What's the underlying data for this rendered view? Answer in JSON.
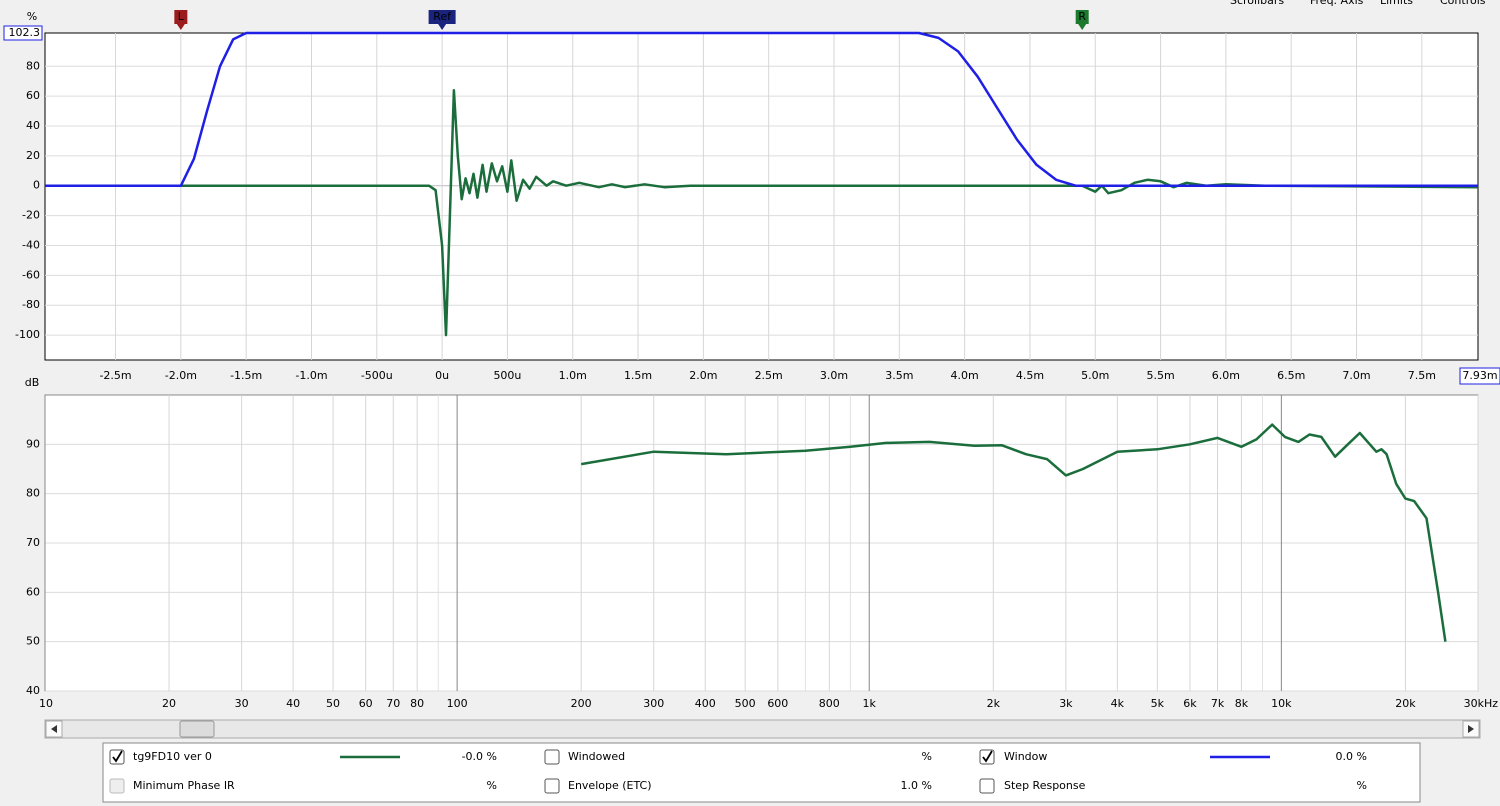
{
  "toolbar": [
    "Scrollbars",
    "Freq. Axis",
    "Limits",
    "Controls"
  ],
  "chart_data": [
    {
      "type": "line",
      "ylabel": "%",
      "xlim": [
        -3.04,
        7.93
      ],
      "ylim": [
        -116.7,
        102.3
      ],
      "yticks": [
        102.3,
        80,
        60,
        40,
        20,
        0,
        -20,
        -40,
        -60,
        -80,
        -100
      ],
      "xticks": [
        {
          "value": -2.5,
          "label": "-2.5m"
        },
        {
          "value": -2.0,
          "label": "-2.0m"
        },
        {
          "value": -1.5,
          "label": "-1.5m"
        },
        {
          "value": -1.0,
          "label": "-1.0m"
        },
        {
          "value": -0.5,
          "label": "-500u"
        },
        {
          "value": 0,
          "label": "0u"
        },
        {
          "value": 0.5,
          "label": "500u"
        },
        {
          "value": 1.0,
          "label": "1.0m"
        },
        {
          "value": 1.5,
          "label": "1.5m"
        },
        {
          "value": 2.0,
          "label": "2.0m"
        },
        {
          "value": 2.5,
          "label": "2.5m"
        },
        {
          "value": 3.0,
          "label": "3.0m"
        },
        {
          "value": 3.5,
          "label": "3.5m"
        },
        {
          "value": 4.0,
          "label": "4.0m"
        },
        {
          "value": 4.5,
          "label": "4.5m"
        },
        {
          "value": 5.0,
          "label": "5.0m"
        },
        {
          "value": 5.5,
          "label": "5.5m"
        },
        {
          "value": 6.0,
          "label": "6.0m"
        },
        {
          "value": 6.5,
          "label": "6.5m"
        },
        {
          "value": 7.0,
          "label": "7.0m"
        },
        {
          "value": 7.5,
          "label": "7.5m"
        },
        {
          "value": 7.93,
          "label": "7.93m"
        }
      ],
      "markers": [
        {
          "label": "L",
          "x": -2.0,
          "color": "#9b1c1c"
        },
        {
          "label": "Ref",
          "x": 0,
          "color": "#1a237e"
        },
        {
          "label": "R",
          "x": 4.9,
          "color": "#1b7a2e"
        }
      ],
      "series": [
        {
          "name": "tg9FD10 ver 0",
          "color": "#1b6e3c",
          "x": [
            -3.04,
            -0.1,
            -0.05,
            0.0,
            0.03,
            0.06,
            0.09,
            0.12,
            0.15,
            0.18,
            0.21,
            0.24,
            0.27,
            0.31,
            0.34,
            0.38,
            0.42,
            0.46,
            0.5,
            0.53,
            0.57,
            0.62,
            0.67,
            0.72,
            0.8,
            0.85,
            0.95,
            1.05,
            1.2,
            1.3,
            1.4,
            1.55,
            1.7,
            1.9,
            2.5,
            4.9,
            4.95,
            5.0,
            5.05,
            5.1,
            5.2,
            5.3,
            5.4,
            5.5,
            5.6,
            5.7,
            5.85,
            6.0,
            6.3,
            7.93
          ],
          "values": [
            0,
            0,
            -3,
            -40,
            -100,
            -20,
            64,
            20,
            -9,
            5,
            -5,
            8,
            -8,
            14,
            -4,
            15,
            3,
            13,
            -4,
            17,
            -10,
            4,
            -2,
            6,
            0,
            3,
            0,
            2,
            -1,
            1,
            -1,
            1,
            -1,
            0,
            0,
            0,
            -2,
            -4,
            0,
            -5,
            -3,
            2,
            4,
            3,
            -1,
            2,
            0,
            1,
            0,
            -1
          ]
        },
        {
          "name": "Window",
          "color": "#1f1fe6",
          "x": [
            -3.04,
            -2.0,
            -1.9,
            -1.8,
            -1.7,
            -1.6,
            -1.5,
            3.65,
            3.8,
            3.95,
            4.1,
            4.25,
            4.4,
            4.55,
            4.7,
            4.85,
            7.93
          ],
          "values": [
            0,
            0,
            18,
            50,
            80,
            98,
            102.3,
            102.3,
            99,
            90,
            73,
            52,
            31,
            14,
            4,
            0,
            0
          ]
        }
      ]
    },
    {
      "type": "line",
      "ylabel": "dB",
      "log_x": true,
      "xlim": [
        10,
        30000
      ],
      "ylim": [
        40,
        100
      ],
      "yticks": [
        90,
        80,
        70,
        60,
        50,
        40
      ],
      "xticks": [
        10,
        20,
        30,
        40,
        50,
        60,
        70,
        80,
        100,
        200,
        300,
        400,
        500,
        600,
        800,
        {
          "value": 1000,
          "label": "1k"
        },
        {
          "value": 2000,
          "label": "2k"
        },
        {
          "value": 3000,
          "label": "3k"
        },
        {
          "value": 4000,
          "label": "4k"
        },
        {
          "value": 5000,
          "label": "5k"
        },
        {
          "value": 6000,
          "label": "6k"
        },
        {
          "value": 7000,
          "label": "7k"
        },
        {
          "value": 8000,
          "label": "8k"
        },
        {
          "value": 10000,
          "label": "10k"
        },
        {
          "value": 20000,
          "label": "20k"
        },
        {
          "value": 30000,
          "label": "30kHz"
        }
      ],
      "xminor": [
        90,
        700,
        900,
        9000
      ],
      "series": [
        {
          "name": "tg9FD10 ver 0",
          "color": "#1b6e3c",
          "x": [
            200,
            300,
            450,
            700,
            900,
            1100,
            1400,
            1800,
            2100,
            2400,
            2700,
            3000,
            3300,
            4000,
            5000,
            6000,
            7000,
            8000,
            8700,
            9500,
            10200,
            11000,
            11700,
            12500,
            13500,
            14500,
            15500,
            17000,
            17500,
            18000,
            19000,
            20000,
            21000,
            22500,
            24000,
            25000
          ],
          "values": [
            86,
            88.5,
            88,
            88.7,
            89.5,
            90.3,
            90.5,
            89.7,
            89.8,
            88,
            87,
            83.7,
            85,
            88.5,
            89,
            90,
            91.3,
            89.5,
            91,
            94,
            91.5,
            90.5,
            92,
            91.5,
            87.5,
            90,
            92.3,
            88.5,
            89,
            88,
            82,
            79,
            78.5,
            75,
            60,
            50
          ]
        }
      ]
    }
  ],
  "legend": {
    "items": [
      {
        "label": "tg9FD10 ver 0",
        "checked": true,
        "enabled": true,
        "text_color": "#1b6e3c",
        "line_color": "#1b6e3c",
        "value": "-0.0 %"
      },
      {
        "label": "Windowed",
        "checked": false,
        "enabled": true,
        "text_color": "#1b6e3c",
        "value": "%"
      },
      {
        "label": "Window",
        "checked": true,
        "enabled": true,
        "text_color": "#1f1fe6",
        "line_color": "#1f1fe6",
        "value": "0.0 %"
      },
      {
        "label": "Minimum Phase IR",
        "checked": false,
        "enabled": false,
        "text_color": "#a0a0a0",
        "value": "%"
      },
      {
        "label": "Envelope (ETC)",
        "checked": false,
        "enabled": true,
        "text_color": "#000000",
        "value": "1.0 %"
      },
      {
        "label": "Step Response",
        "checked": false,
        "enabled": true,
        "text_color": "#000000",
        "value": "%"
      }
    ]
  }
}
